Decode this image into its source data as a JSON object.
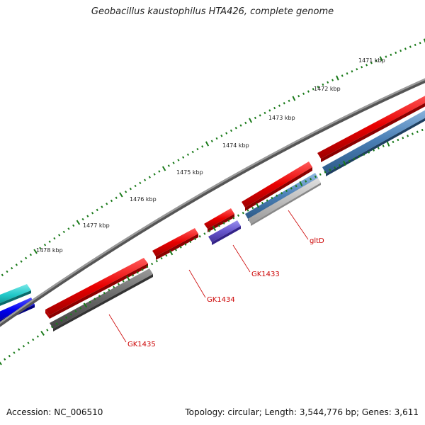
{
  "title": "Geobacillus kaustophilus HTA426, complete genome",
  "footer": {
    "accession": "Accession: NC_006510",
    "topology": "Topology: circular; Length: 3,544,776 bp; Genes: 3,611"
  },
  "ruler": {
    "labels": [
      "1471 kbp",
      "1472 kbp",
      "1473 kbp",
      "1474 kbp",
      "1475 kbp",
      "1476 kbp",
      "1477 kbp",
      "1478 kbp"
    ],
    "tick_color": "#1a7a1a"
  },
  "genes": [
    {
      "name": "gltD",
      "color": "#cc0000"
    },
    {
      "name": "GK1433",
      "color": "#cc0000"
    },
    {
      "name": "GK1434",
      "color": "#cc0000"
    },
    {
      "name": "GK1435",
      "color": "#cc0000"
    }
  ],
  "colors": {
    "backbone": "#7a7a7a",
    "forward_cds": "#e60000",
    "reverse_cds_blue": "#4a7fb5",
    "reverse_cds_gray": "#666666",
    "reverse_cds_light": "#bbbbbb",
    "reverse_cds_purple": "#6655cc",
    "cyan_feature": "#20c8c8",
    "blue_feature": "#0000ee"
  }
}
